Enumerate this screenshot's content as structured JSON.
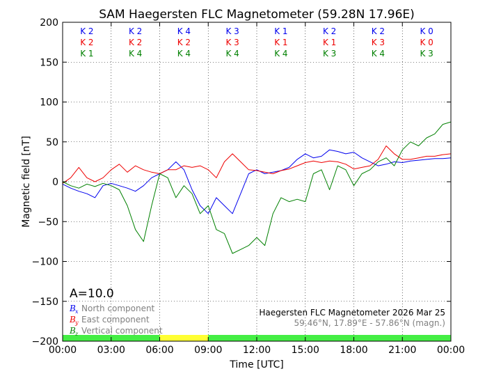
{
  "chart_data": {
    "type": "line",
    "title": "SAM Haegersten FLC Magnetometer (59.28N 17.96E)",
    "xlabel": "Time [UTC]",
    "ylabel": "Magnetic field [nT]",
    "xlim": [
      0,
      24
    ],
    "ylim": [
      -200,
      200
    ],
    "grid": true,
    "x_tick_values": [
      0,
      3,
      6,
      9,
      12,
      15,
      18,
      21,
      24
    ],
    "x_tick_labels": [
      "00:00",
      "03:00",
      "06:00",
      "09:00",
      "12:00",
      "15:00",
      "18:00",
      "21:00",
      "00:00"
    ],
    "y_tick_values": [
      200,
      150,
      100,
      50,
      0,
      -50,
      -100,
      -150,
      -200
    ],
    "y_tick_labels": [
      "200",
      "150",
      "100",
      "50",
      "0",
      "−50",
      "−100",
      "−150",
      "−200"
    ],
    "k_index": {
      "rows": [
        {
          "name": "Bx",
          "color": "#0000ee",
          "labels": [
            "K 2",
            "K 2",
            "K 4",
            "K 3",
            "K 1",
            "K 2",
            "K 2",
            "K 0"
          ]
        },
        {
          "name": "By",
          "color": "#ee0000",
          "labels": [
            "K 2",
            "K 2",
            "K 2",
            "K 3",
            "K 1",
            "K 1",
            "K 3",
            "K 0"
          ]
        },
        {
          "name": "Bz",
          "color": "#008000",
          "labels": [
            "K 1",
            "K 4",
            "K 4",
            "K 4",
            "K 4",
            "K 3",
            "K 4",
            "K 3"
          ]
        }
      ]
    },
    "activity_bar": [
      {
        "from": 0,
        "to": 6,
        "color": "#44ee44"
      },
      {
        "from": 6,
        "to": 9,
        "color": "#ffff33"
      },
      {
        "from": 9,
        "to": 24,
        "color": "#44ee44"
      }
    ],
    "a_index_label": "A=10.0",
    "legend": [
      {
        "symbol": "B",
        "sub": "x",
        "label": "North component",
        "color": "#0000ee"
      },
      {
        "symbol": "B",
        "sub": "y",
        "label": "East component",
        "color": "#ee0000"
      },
      {
        "symbol": "B",
        "sub": "z",
        "label": "Vertical component",
        "color": "#008000"
      }
    ],
    "info_line1": "Haegersten FLC Magnetometer 2026 Mar 25",
    "info_line2": "59.46°N, 17.89°E - 57.86°N (magn.)",
    "series": [
      {
        "name": "North component",
        "color": "#0000ee",
        "x": [
          0,
          0.5,
          1,
          1.5,
          2,
          2.5,
          3,
          3.5,
          4,
          4.5,
          5,
          5.5,
          6,
          6.5,
          7,
          7.5,
          8,
          8.5,
          9,
          9.5,
          10,
          10.5,
          11,
          11.5,
          12,
          12.5,
          13,
          13.5,
          14,
          14.5,
          15,
          15.5,
          16,
          16.5,
          17,
          17.5,
          18,
          18.5,
          19,
          19.5,
          20,
          20.5,
          21,
          21.5,
          22,
          22.5,
          23,
          23.5,
          24
        ],
        "y": [
          -3,
          -8,
          -12,
          -15,
          -20,
          -5,
          -2,
          -5,
          -8,
          -12,
          -5,
          5,
          10,
          15,
          25,
          15,
          -10,
          -30,
          -40,
          -20,
          -30,
          -40,
          -15,
          10,
          15,
          10,
          12,
          14,
          18,
          28,
          35,
          30,
          32,
          40,
          38,
          35,
          37,
          30,
          25,
          20,
          22,
          25,
          24,
          26,
          27,
          28,
          29,
          29,
          30
        ]
      },
      {
        "name": "East component",
        "color": "#ee0000",
        "x": [
          0,
          0.5,
          1,
          1.5,
          2,
          2.5,
          3,
          3.5,
          4,
          4.5,
          5,
          5.5,
          6,
          6.5,
          7,
          7.5,
          8,
          8.5,
          9,
          9.5,
          10,
          10.5,
          11,
          11.5,
          12,
          12.5,
          13,
          13.5,
          14,
          14.5,
          15,
          15.5,
          16,
          16.5,
          17,
          17.5,
          18,
          18.5,
          19,
          19.5,
          20,
          20.5,
          21,
          21.5,
          22,
          22.5,
          23,
          23.5,
          24
        ],
        "y": [
          -2,
          5,
          18,
          5,
          0,
          5,
          15,
          22,
          12,
          20,
          15,
          12,
          10,
          15,
          15,
          20,
          18,
          20,
          15,
          5,
          25,
          35,
          25,
          15,
          14,
          12,
          10,
          14,
          16,
          20,
          24,
          26,
          24,
          26,
          25,
          22,
          16,
          18,
          20,
          28,
          45,
          35,
          28,
          28,
          30,
          32,
          32,
          34,
          35
        ]
      },
      {
        "name": "Vertical component",
        "color": "#008000",
        "x": [
          0,
          0.5,
          1,
          1.5,
          2,
          2.5,
          3,
          3.5,
          4,
          4.5,
          5,
          5.5,
          6,
          6.5,
          7,
          7.5,
          8,
          8.5,
          9,
          9.5,
          10,
          10.5,
          11,
          11.5,
          12,
          12.5,
          13,
          13.5,
          14,
          14.5,
          15,
          15.5,
          16,
          16.5,
          17,
          17.5,
          18,
          18.5,
          19,
          19.5,
          20,
          20.5,
          21,
          21.5,
          22,
          22.5,
          23,
          23.5,
          24
        ],
        "y": [
          0,
          -5,
          -8,
          -3,
          -6,
          -2,
          -5,
          -10,
          -30,
          -60,
          -75,
          -30,
          10,
          5,
          -20,
          -5,
          -15,
          -40,
          -30,
          -60,
          -65,
          -90,
          -85,
          -80,
          -70,
          -80,
          -40,
          -20,
          -25,
          -22,
          -25,
          10,
          15,
          -10,
          20,
          15,
          -5,
          10,
          15,
          25,
          30,
          20,
          40,
          50,
          45,
          55,
          60,
          72,
          75
        ]
      }
    ]
  }
}
